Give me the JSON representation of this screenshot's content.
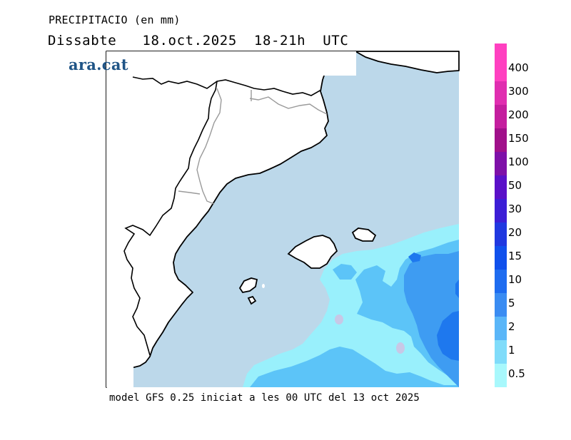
{
  "header": {
    "title": "PRECIPITACIO (en mm)",
    "subtitle": "Dissabte   18.oct.2025  18-21h  UTC",
    "logo": "ara.cat"
  },
  "footer": {
    "model_note": "model GFS 0.25 iniciat a les 00 UTC del 13 oct 2025"
  },
  "legend": {
    "labels": [
      "400",
      "300",
      "200",
      "150",
      "100",
      "50",
      "30",
      "20",
      "15",
      "10",
      "5",
      "2",
      "1",
      "0.5"
    ],
    "colors": [
      "#ff40c0",
      "#e02eb0",
      "#c41e9e",
      "#a0108a",
      "#7e10a8",
      "#5a10c8",
      "#3c1ed6",
      "#2038e0",
      "#1050ec",
      "#1e6cf0",
      "#3a8cf2",
      "#5ab6f8",
      "#80dcfa",
      "#a8f8fc"
    ]
  },
  "colors": {
    "sea": "#bcd8ea",
    "land": "#ffffff",
    "precip_light": "#99f0fc",
    "precip_2mm": "#5cc4f8",
    "precip_5mm": "#3e9cf2",
    "precip_10mm": "#1e78ee",
    "local_max": "#c8c8e6"
  }
}
